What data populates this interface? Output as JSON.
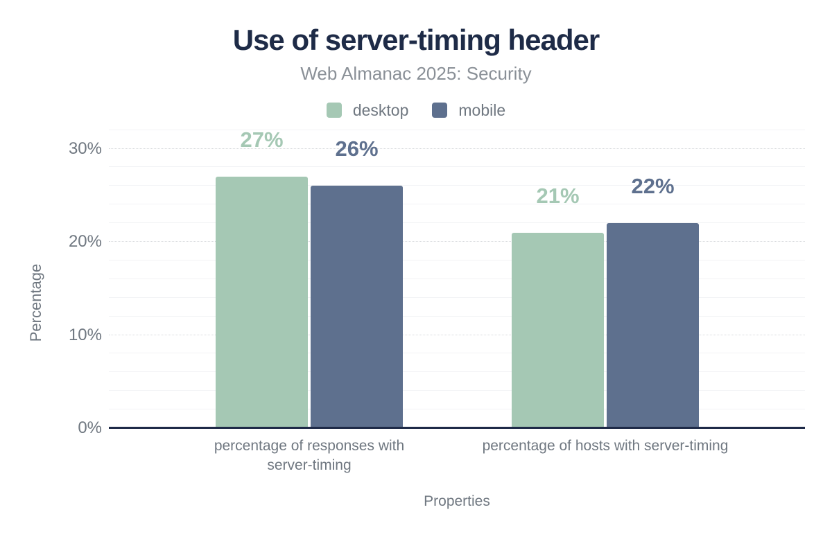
{
  "title": "Use of server-timing header",
  "subtitle": "Web Almanac 2025: Security",
  "colors": {
    "desktop": "#a5c8b4",
    "mobile": "#5e708e",
    "title_navy": "#1e2b47",
    "axis_line": "#1e2a47",
    "text_gray": "#6f7780",
    "subtitle_gray": "#8a9097",
    "grid_major": "#d8dadd",
    "grid_minor": "#f2f3f5"
  },
  "legend": {
    "position": "top",
    "items": [
      {
        "label": "desktop",
        "color": "#a5c8b4"
      },
      {
        "label": "mobile",
        "color": "#5e708e"
      }
    ]
  },
  "chart_data": {
    "type": "bar",
    "title": "Use of server-timing header",
    "subtitle": "Web Almanac 2025: Security",
    "categories": [
      "percentage of responses with server-timing",
      "percentage of hosts with server-timing"
    ],
    "series": [
      {
        "name": "desktop",
        "values": [
          27,
          21
        ],
        "color": "#a5c8b4"
      },
      {
        "name": "mobile",
        "values": [
          26,
          22
        ],
        "color": "#5e708e"
      }
    ],
    "value_labels": [
      [
        "27%",
        "21%"
      ],
      [
        "26%",
        "22%"
      ]
    ],
    "xlabel": "Properties",
    "ylabel": "Percentage",
    "ylim": [
      0,
      32
    ],
    "yticks": [
      {
        "label": "0%",
        "value": 0
      },
      {
        "label": "10%",
        "value": 10
      },
      {
        "label": "20%",
        "value": 20
      },
      {
        "label": "30%",
        "value": 30
      }
    ],
    "grid": {
      "major_every": 10,
      "major_style": "dotted",
      "minor_every": 2,
      "minor_style": "solid"
    },
    "legend_position": "top"
  }
}
